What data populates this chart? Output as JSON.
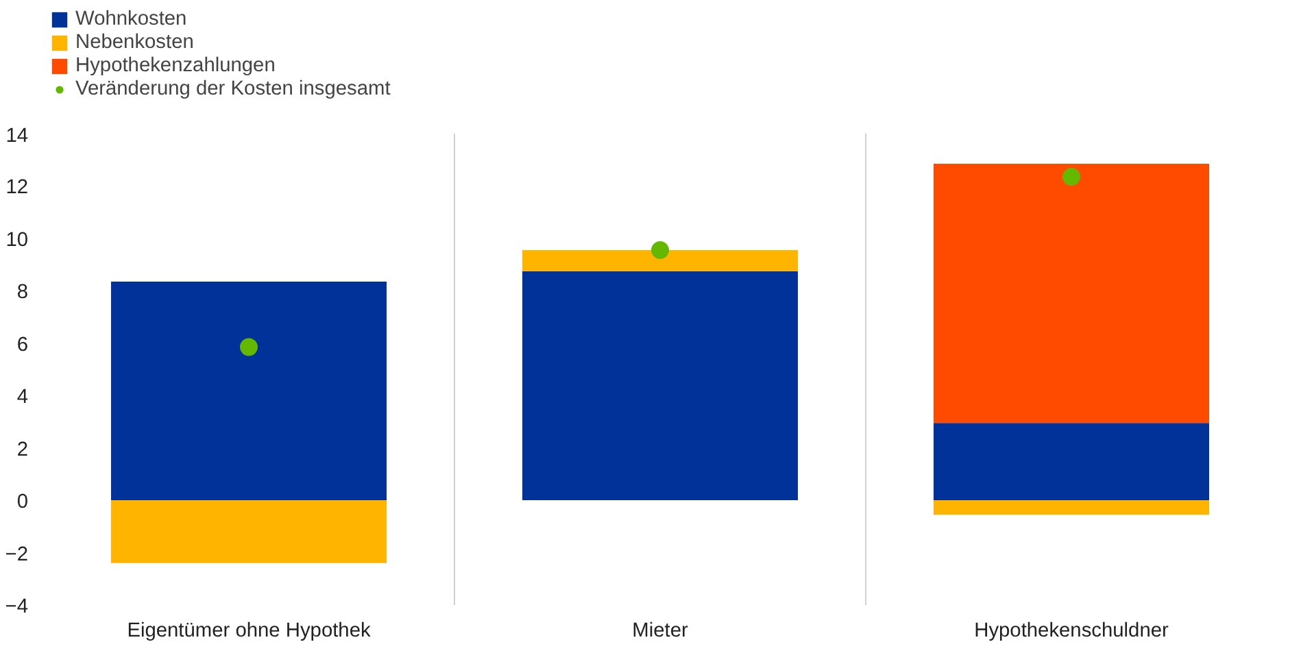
{
  "chart_data": {
    "type": "bar",
    "stacked": true,
    "categories": [
      "Eigentümer ohne Hypothek",
      "Mieter",
      "Hypothekenschuldner"
    ],
    "series": [
      {
        "name": "Wohnkosten",
        "color": "#003299",
        "values": [
          8.35,
          8.75,
          2.95
        ]
      },
      {
        "name": "Nebenkosten",
        "color": "#ffb400",
        "values": [
          -2.4,
          0.8,
          -0.55
        ]
      },
      {
        "name": "Hypothekenzahlungen",
        "color": "#ff4b00",
        "values": [
          0,
          0,
          9.9
        ]
      },
      {
        "name": "Veränderung der Kosten insgesamt",
        "type": "scatter",
        "color": "#65b800",
        "values": [
          5.85,
          9.55,
          12.35
        ]
      }
    ],
    "ylim": [
      -4,
      14
    ],
    "yticks": [
      -4,
      -2,
      0,
      2,
      4,
      6,
      8,
      10,
      12,
      14
    ],
    "grid": "x",
    "legend": "top left",
    "marker": "circle"
  }
}
